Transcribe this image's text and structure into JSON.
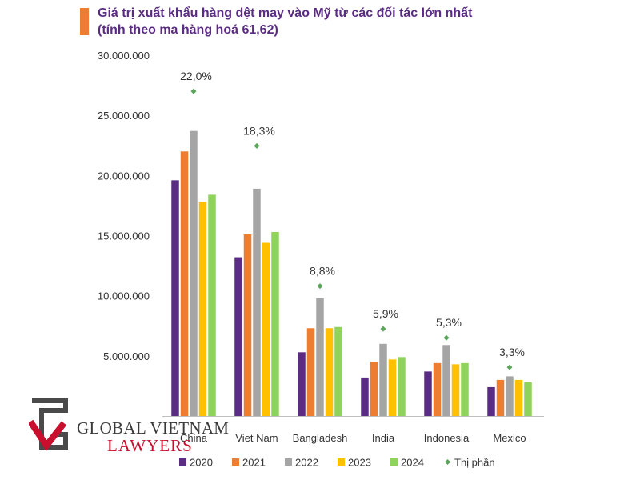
{
  "title": {
    "line1": "Giá trị xuất khẩu hàng dệt may vào Mỹ từ các đối tác lớn nhất",
    "line2": "(tính theo ma hàng hoá 61,62)"
  },
  "colors": {
    "title": "#5b2c83",
    "accent": "#ed7d31",
    "series": [
      "#5b2c83",
      "#ed7d31",
      "#a5a5a5",
      "#ffc000",
      "#8fd35c"
    ],
    "share": "#5aa55a"
  },
  "chart_data": {
    "type": "bar",
    "title": "Giá trị xuất khẩu hàng dệt may vào Mỹ từ các đối tác lớn nhất (tính theo ma hàng hoá 61,62)",
    "categories": [
      "China",
      "Viet Nam",
      "Bangladesh",
      "India",
      "Indonesia",
      "Mexico"
    ],
    "series": [
      {
        "name": "2020",
        "values": [
          19600000,
          13200000,
          5300000,
          3200000,
          3700000,
          2400000
        ]
      },
      {
        "name": "2021",
        "values": [
          22000000,
          15100000,
          7300000,
          4500000,
          4400000,
          3000000
        ]
      },
      {
        "name": "2022",
        "values": [
          23700000,
          18900000,
          9800000,
          6000000,
          5900000,
          3300000
        ]
      },
      {
        "name": "2023",
        "values": [
          17800000,
          14400000,
          7300000,
          4700000,
          4300000,
          3000000
        ]
      },
      {
        "name": "2024",
        "values": [
          18400000,
          15300000,
          7400000,
          4900000,
          4400000,
          2800000
        ]
      }
    ],
    "share": {
      "name": "Thị phần",
      "values": [
        22.0,
        18.3,
        8.8,
        5.9,
        5.3,
        3.3
      ],
      "labels": [
        "22,0%",
        "18,3%",
        "8,8%",
        "5,9%",
        "5,3%",
        "3,3%"
      ]
    },
    "y_ticks": [
      5000000,
      10000000,
      15000000,
      20000000,
      25000000,
      30000000
    ],
    "y_tick_labels": [
      "5.000.000",
      "10.000.000",
      "15.000.000",
      "20.000.000",
      "25.000.000",
      "30.000.000"
    ],
    "ylim": [
      0,
      30000000
    ],
    "grid": false,
    "legend_position": "bottom"
  },
  "logo": {
    "name": "GLOBAL VIETNAM",
    "sub": "LAWYERS"
  }
}
